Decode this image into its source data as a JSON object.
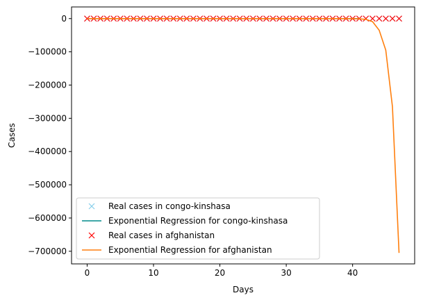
{
  "chart_data": {
    "type": "line",
    "xlabel": "Days",
    "ylabel": "Cases",
    "xlim": [
      -2.35,
      49.35
    ],
    "ylim": [
      -738000,
      35000
    ],
    "xticks": [
      0,
      10,
      20,
      30,
      40
    ],
    "yticks": [
      0,
      -100000,
      -200000,
      -300000,
      -400000,
      -500000,
      -600000,
      -700000
    ],
    "legend_position": "lower-left",
    "series": [
      {
        "name": "Real cases in congo-kinshasa",
        "kind": "scatter",
        "marker": "x",
        "color": "#87ceeb",
        "x": [
          0,
          1,
          2,
          3,
          4,
          5,
          6,
          7,
          8,
          9,
          10,
          11,
          12,
          13,
          14,
          15,
          16,
          17,
          18,
          19,
          20,
          21,
          22,
          23,
          24,
          25,
          26,
          27,
          28,
          29,
          30,
          31,
          32,
          33,
          34,
          35,
          36,
          37,
          38,
          39,
          40,
          41,
          42,
          43,
          44,
          45,
          46,
          47
        ],
        "y": [
          0,
          0,
          0,
          0,
          0,
          0,
          0,
          0,
          0,
          0,
          0,
          0,
          0,
          0,
          0,
          0,
          0,
          0,
          0,
          0,
          0,
          0,
          0,
          0,
          0,
          0,
          0,
          0,
          0,
          0,
          0,
          0,
          0,
          0,
          0,
          0,
          0,
          0,
          0,
          0,
          0,
          0,
          0,
          0,
          0,
          0,
          0,
          0
        ]
      },
      {
        "name": "Exponential Regression for congo-kinshasa",
        "kind": "line",
        "color": "#008b8b",
        "x": [
          0,
          1,
          2,
          3,
          4,
          5,
          6,
          7,
          8,
          9,
          10,
          11,
          12,
          13,
          14,
          15,
          16,
          17,
          18,
          19,
          20,
          21,
          22,
          23,
          24,
          25,
          26,
          27,
          28,
          29,
          30,
          31,
          32,
          33,
          34,
          35,
          36,
          37,
          38,
          39,
          40,
          41
        ],
        "y": [
          0,
          0,
          0,
          0,
          0,
          0,
          0,
          0,
          0,
          0,
          0,
          0,
          0,
          0,
          0,
          0,
          0,
          0,
          0,
          0,
          0,
          0,
          0,
          0,
          0,
          0,
          0,
          0,
          0,
          0,
          0,
          0,
          0,
          0,
          0,
          0,
          0,
          0,
          0,
          0,
          0,
          0
        ]
      },
      {
        "name": "Real cases in afghanistan",
        "kind": "scatter",
        "marker": "x",
        "color": "#ff0000",
        "x": [
          0,
          1,
          2,
          3,
          4,
          5,
          6,
          7,
          8,
          9,
          10,
          11,
          12,
          13,
          14,
          15,
          16,
          17,
          18,
          19,
          20,
          21,
          22,
          23,
          24,
          25,
          26,
          27,
          28,
          29,
          30,
          31,
          32,
          33,
          34,
          35,
          36,
          37,
          38,
          39,
          40,
          41,
          42,
          43,
          44,
          45,
          46,
          47
        ],
        "y": [
          0,
          0,
          0,
          0,
          0,
          0,
          0,
          0,
          0,
          0,
          0,
          0,
          0,
          0,
          0,
          0,
          0,
          0,
          0,
          0,
          0,
          0,
          0,
          0,
          0,
          0,
          0,
          0,
          0,
          0,
          0,
          0,
          0,
          0,
          0,
          0,
          0,
          0,
          0,
          0,
          0,
          0,
          0,
          0,
          0,
          0,
          0,
          0
        ]
      },
      {
        "name": "Exponential Regression for afghanistan",
        "kind": "line",
        "color": "#ff7f0e",
        "x": [
          0,
          5,
          10,
          15,
          20,
          25,
          30,
          35,
          38,
          40,
          41,
          42,
          43,
          44,
          45,
          46,
          47
        ],
        "y": [
          0,
          0,
          0,
          0,
          0,
          0,
          0,
          0,
          -50,
          -300,
          -800,
          -2500,
          -9000,
          -35000,
          -95000,
          -265000,
          -705000
        ]
      }
    ]
  }
}
